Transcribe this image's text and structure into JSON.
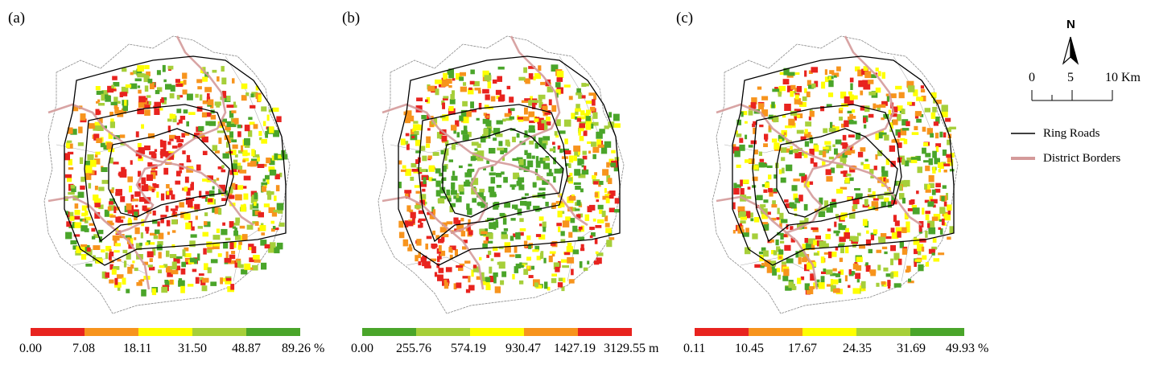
{
  "panels": [
    {
      "label": "(a)",
      "colors": [
        "#e8231f",
        "#f7941d",
        "#ffff00",
        "#a6cf3a",
        "#4aa52a"
      ],
      "ticks": [
        "0.00",
        "7.08",
        "18.11",
        "31.50",
        "48.87",
        "89.26 %"
      ],
      "hot": "core"
    },
    {
      "label": "(b)",
      "colors": [
        "#4aa52a",
        "#a6cf3a",
        "#ffff00",
        "#f7941d",
        "#e8231f"
      ],
      "ticks": [
        "0.00",
        "255.76",
        "574.19",
        "930.47",
        "1427.19",
        "3129.55 m"
      ],
      "hot": "periphery"
    },
    {
      "label": "(c)",
      "colors": [
        "#e8231f",
        "#f7941d",
        "#ffff00",
        "#a6cf3a",
        "#4aa52a"
      ],
      "ticks": [
        "0.11",
        "10.45",
        "17.67",
        "24.35",
        "31.69",
        "49.93 %"
      ],
      "hot": "mixed"
    }
  ],
  "north": "N",
  "scale": {
    "labels": [
      "0",
      "5",
      "10 Km"
    ]
  },
  "legend": [
    {
      "label": "Ring Roads",
      "color": "#000000"
    },
    {
      "label": "District Borders",
      "color": "#d49a9a"
    }
  ]
}
